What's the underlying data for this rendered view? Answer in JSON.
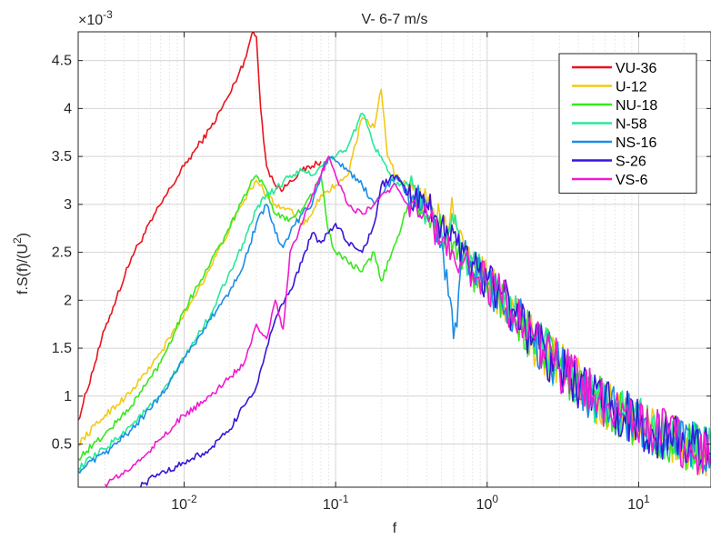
{
  "chart_data": {
    "type": "line",
    "title": "V-  6-7 m/s",
    "xlabel": "f",
    "ylabel": "f.S(f)/(U",
    "ylabel_sup": "2",
    "ylabel_close": ")",
    "y_exponent_base": "×10",
    "y_exponent_power": "-3",
    "xscale": "log",
    "xlim": [
      0.002,
      30
    ],
    "ylim": [
      0.05,
      4.8
    ],
    "x_ticks": [
      0.01,
      0.1,
      1,
      10
    ],
    "x_tick_labels": [
      {
        "base": "10",
        "exp": "-2"
      },
      {
        "base": "10",
        "exp": "-1"
      },
      {
        "base": "10",
        "exp": "0"
      },
      {
        "base": "10",
        "exp": "1"
      }
    ],
    "y_ticks": [
      0.5,
      1,
      1.5,
      2,
      2.5,
      3,
      3.5,
      4,
      4.5
    ],
    "y_tick_labels": [
      "0.5",
      "1",
      "1.5",
      "2",
      "2.5",
      "3",
      "3.5",
      "4",
      "4.5"
    ],
    "grid": true,
    "legend_position": "top-right",
    "series": [
      {
        "name": "VU-36",
        "color": "#e8141c",
        "points": [
          [
            0.002,
            0.75
          ],
          [
            0.003,
            1.7
          ],
          [
            0.0045,
            2.45
          ],
          [
            0.007,
            3.0
          ],
          [
            0.01,
            3.4
          ],
          [
            0.015,
            3.8
          ],
          [
            0.02,
            4.15
          ],
          [
            0.025,
            4.5
          ],
          [
            0.028,
            4.78
          ],
          [
            0.03,
            4.75
          ],
          [
            0.032,
            4.0
          ],
          [
            0.035,
            3.4
          ],
          [
            0.04,
            3.2
          ],
          [
            0.045,
            3.15
          ],
          [
            0.05,
            3.25
          ],
          [
            0.06,
            3.35
          ],
          [
            0.07,
            3.4
          ],
          [
            0.08,
            3.45
          ]
        ]
      },
      {
        "name": "U-12",
        "color": "#f2c918",
        "points": [
          [
            0.002,
            0.5
          ],
          [
            0.003,
            0.8
          ],
          [
            0.0045,
            1.05
          ],
          [
            0.007,
            1.45
          ],
          [
            0.01,
            1.85
          ],
          [
            0.015,
            2.35
          ],
          [
            0.02,
            2.75
          ],
          [
            0.025,
            3.05
          ],
          [
            0.03,
            3.25
          ],
          [
            0.035,
            3.1
          ],
          [
            0.04,
            3.0
          ],
          [
            0.05,
            2.95
          ],
          [
            0.06,
            2.8
          ],
          [
            0.07,
            2.9
          ],
          [
            0.08,
            3.1
          ],
          [
            0.1,
            3.2
          ],
          [
            0.12,
            3.3
          ],
          [
            0.15,
            3.9
          ],
          [
            0.18,
            3.8
          ],
          [
            0.2,
            4.2
          ],
          [
            0.22,
            3.5
          ],
          [
            0.25,
            3.3
          ],
          [
            0.3,
            3.2
          ],
          [
            0.4,
            3.0
          ],
          [
            0.5,
            2.8
          ],
          [
            0.6,
            2.9
          ],
          [
            0.7,
            2.6
          ],
          [
            0.8,
            2.4
          ],
          [
            1,
            2.2
          ],
          [
            1.5,
            1.9
          ],
          [
            2,
            1.6
          ],
          [
            3,
            1.3
          ],
          [
            5,
            1.0
          ],
          [
            8,
            0.8
          ],
          [
            12,
            0.65
          ],
          [
            20,
            0.5
          ],
          [
            30,
            0.4
          ]
        ]
      },
      {
        "name": "NU-18",
        "color": "#38e81e",
        "points": [
          [
            0.002,
            0.35
          ],
          [
            0.003,
            0.6
          ],
          [
            0.0045,
            0.9
          ],
          [
            0.007,
            1.35
          ],
          [
            0.01,
            1.9
          ],
          [
            0.015,
            2.4
          ],
          [
            0.02,
            2.75
          ],
          [
            0.025,
            3.1
          ],
          [
            0.03,
            3.3
          ],
          [
            0.035,
            3.15
          ],
          [
            0.04,
            2.9
          ],
          [
            0.05,
            2.85
          ],
          [
            0.06,
            2.95
          ],
          [
            0.07,
            3.1
          ],
          [
            0.08,
            3.3
          ],
          [
            0.09,
            2.7
          ],
          [
            0.1,
            2.5
          ],
          [
            0.12,
            2.4
          ],
          [
            0.15,
            2.3
          ],
          [
            0.18,
            2.5
          ],
          [
            0.2,
            2.2
          ],
          [
            0.25,
            2.6
          ],
          [
            0.3,
            3.0
          ],
          [
            0.4,
            2.9
          ],
          [
            0.5,
            2.7
          ],
          [
            0.6,
            2.6
          ],
          [
            0.7,
            2.5
          ],
          [
            0.8,
            2.3
          ],
          [
            1,
            2.2
          ],
          [
            1.5,
            1.85
          ],
          [
            2,
            1.6
          ],
          [
            3,
            1.3
          ],
          [
            5,
            1.0
          ],
          [
            8,
            0.8
          ],
          [
            12,
            0.65
          ],
          [
            20,
            0.5
          ],
          [
            30,
            0.4
          ]
        ]
      },
      {
        "name": "N-58",
        "color": "#28e898",
        "points": [
          [
            0.002,
            0.25
          ],
          [
            0.003,
            0.45
          ],
          [
            0.0045,
            0.7
          ],
          [
            0.007,
            1.0
          ],
          [
            0.01,
            1.4
          ],
          [
            0.015,
            1.85
          ],
          [
            0.02,
            2.3
          ],
          [
            0.025,
            2.6
          ],
          [
            0.03,
            2.95
          ],
          [
            0.035,
            3.1
          ],
          [
            0.04,
            3.15
          ],
          [
            0.05,
            3.3
          ],
          [
            0.06,
            3.35
          ],
          [
            0.07,
            3.3
          ],
          [
            0.08,
            3.4
          ],
          [
            0.1,
            3.5
          ],
          [
            0.12,
            3.6
          ],
          [
            0.15,
            3.95
          ],
          [
            0.18,
            3.6
          ],
          [
            0.2,
            3.5
          ],
          [
            0.25,
            3.2
          ],
          [
            0.3,
            3.2
          ],
          [
            0.4,
            2.9
          ],
          [
            0.5,
            2.7
          ],
          [
            0.6,
            2.8
          ],
          [
            0.7,
            2.5
          ],
          [
            0.8,
            2.4
          ],
          [
            1,
            2.2
          ],
          [
            1.5,
            1.85
          ],
          [
            2,
            1.6
          ],
          [
            3,
            1.3
          ],
          [
            5,
            1.0
          ],
          [
            8,
            0.8
          ],
          [
            12,
            0.65
          ],
          [
            20,
            0.5
          ],
          [
            30,
            0.4
          ]
        ]
      },
      {
        "name": "NS-16",
        "color": "#1a8de8",
        "points": [
          [
            0.002,
            0.22
          ],
          [
            0.003,
            0.4
          ],
          [
            0.0045,
            0.65
          ],
          [
            0.007,
            1.0
          ],
          [
            0.01,
            1.4
          ],
          [
            0.015,
            1.8
          ],
          [
            0.02,
            2.1
          ],
          [
            0.025,
            2.4
          ],
          [
            0.03,
            2.8
          ],
          [
            0.035,
            3.0
          ],
          [
            0.04,
            2.7
          ],
          [
            0.045,
            2.55
          ],
          [
            0.05,
            2.7
          ],
          [
            0.06,
            2.9
          ],
          [
            0.07,
            3.0
          ],
          [
            0.08,
            3.3
          ],
          [
            0.09,
            3.5
          ],
          [
            0.1,
            3.45
          ],
          [
            0.12,
            3.35
          ],
          [
            0.15,
            3.2
          ],
          [
            0.18,
            3.0
          ],
          [
            0.2,
            3.1
          ],
          [
            0.25,
            3.3
          ],
          [
            0.3,
            3.1
          ],
          [
            0.4,
            3.0
          ],
          [
            0.5,
            2.6
          ],
          [
            0.6,
            1.6
          ],
          [
            0.7,
            2.5
          ],
          [
            0.8,
            2.3
          ],
          [
            1,
            2.2
          ],
          [
            1.5,
            1.85
          ],
          [
            2,
            1.6
          ],
          [
            3,
            1.3
          ],
          [
            5,
            1.0
          ],
          [
            8,
            0.8
          ],
          [
            12,
            0.65
          ],
          [
            20,
            0.5
          ],
          [
            30,
            0.4
          ]
        ]
      },
      {
        "name": "S-26",
        "color": "#3a14d8",
        "points": [
          [
            0.005,
            0.05
          ],
          [
            0.007,
            0.2
          ],
          [
            0.01,
            0.3
          ],
          [
            0.015,
            0.45
          ],
          [
            0.02,
            0.65
          ],
          [
            0.025,
            0.9
          ],
          [
            0.03,
            1.1
          ],
          [
            0.035,
            1.5
          ],
          [
            0.04,
            1.8
          ],
          [
            0.05,
            2.1
          ],
          [
            0.06,
            2.4
          ],
          [
            0.07,
            2.7
          ],
          [
            0.08,
            2.6
          ],
          [
            0.09,
            2.7
          ],
          [
            0.1,
            2.8
          ],
          [
            0.12,
            2.6
          ],
          [
            0.15,
            2.5
          ],
          [
            0.18,
            2.8
          ],
          [
            0.2,
            3.2
          ],
          [
            0.25,
            3.3
          ],
          [
            0.3,
            3.1
          ],
          [
            0.4,
            3.0
          ],
          [
            0.5,
            2.8
          ],
          [
            0.6,
            2.7
          ],
          [
            0.7,
            2.5
          ],
          [
            0.8,
            2.4
          ],
          [
            1,
            2.2
          ],
          [
            1.5,
            1.9
          ],
          [
            2,
            1.6
          ],
          [
            3,
            1.3
          ],
          [
            5,
            1.0
          ],
          [
            8,
            0.8
          ],
          [
            12,
            0.65
          ],
          [
            20,
            0.5
          ],
          [
            30,
            0.4
          ]
        ]
      },
      {
        "name": "VS-6",
        "color": "#f01ad0",
        "points": [
          [
            0.003,
            0.08
          ],
          [
            0.0045,
            0.25
          ],
          [
            0.007,
            0.55
          ],
          [
            0.01,
            0.8
          ],
          [
            0.015,
            1.0
          ],
          [
            0.02,
            1.2
          ],
          [
            0.025,
            1.35
          ],
          [
            0.03,
            1.75
          ],
          [
            0.035,
            1.6
          ],
          [
            0.04,
            2.0
          ],
          [
            0.045,
            1.7
          ],
          [
            0.05,
            2.5
          ],
          [
            0.06,
            2.8
          ],
          [
            0.07,
            3.1
          ],
          [
            0.08,
            3.3
          ],
          [
            0.09,
            3.5
          ],
          [
            0.1,
            3.3
          ],
          [
            0.12,
            3.0
          ],
          [
            0.15,
            2.9
          ],
          [
            0.18,
            3.0
          ],
          [
            0.2,
            3.1
          ],
          [
            0.25,
            3.2
          ],
          [
            0.3,
            3.0
          ],
          [
            0.4,
            2.9
          ],
          [
            0.5,
            2.6
          ],
          [
            0.6,
            2.5
          ],
          [
            0.7,
            2.4
          ],
          [
            0.8,
            2.3
          ],
          [
            1,
            2.2
          ],
          [
            1.5,
            1.85
          ],
          [
            2,
            1.65
          ],
          [
            3,
            1.3
          ],
          [
            5,
            1.0
          ],
          [
            8,
            0.85
          ],
          [
            12,
            0.7
          ],
          [
            20,
            0.5
          ],
          [
            30,
            0.35
          ]
        ]
      }
    ]
  }
}
